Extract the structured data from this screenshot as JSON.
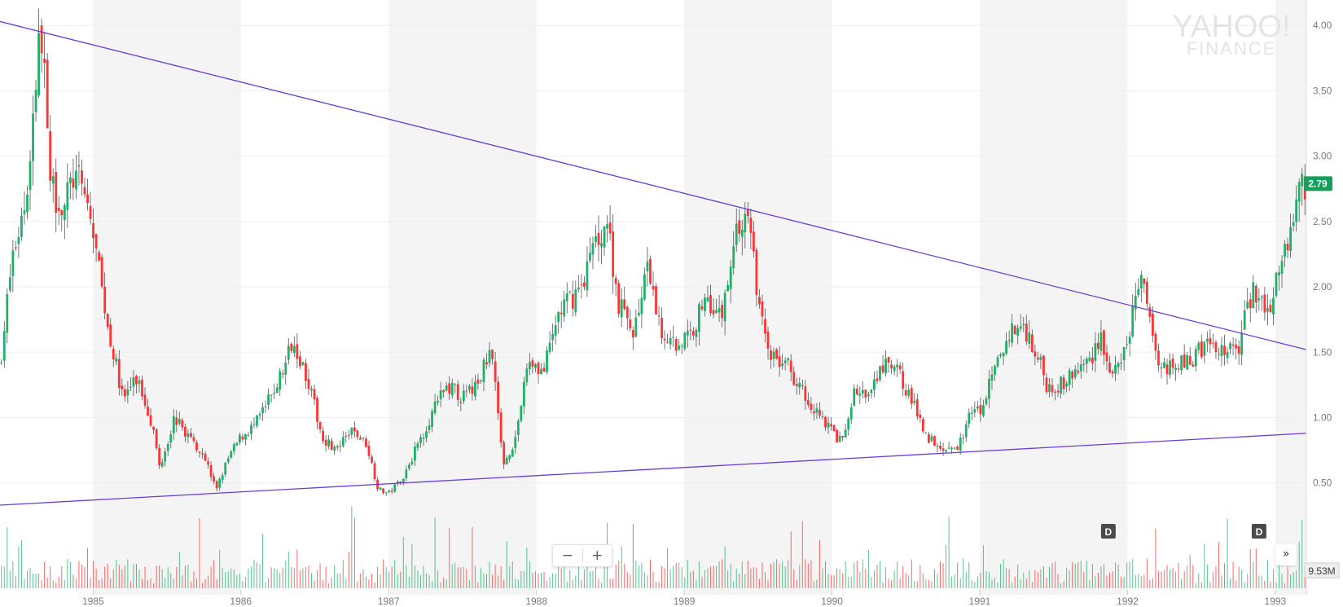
{
  "watermark": {
    "line1": "YAHOO!",
    "line2": "FINANCE"
  },
  "colors": {
    "up": "#1db16a",
    "down": "#ff3333",
    "trendline": "#6a3cd8",
    "badge": "#14a05a",
    "band": "#f4f4f4",
    "grid": "#eeeeee"
  },
  "controls": {
    "zoom_out_icon": "minus-icon",
    "zoom_in_icon": "plus-icon",
    "scroll_icon": "double-chevron-right-icon"
  },
  "chart_data": {
    "type": "candlestick",
    "x_labels": [
      "1985",
      "1986",
      "1987",
      "1988",
      "1989",
      "1990",
      "1991",
      "1992",
      "1993"
    ],
    "y_ticks": [
      "0.50",
      "1.00",
      "1.50",
      "2.00",
      "2.50",
      "3.00",
      "3.50",
      "4.00"
    ],
    "ylim": [
      0.33,
      4.07
    ],
    "xlim": [
      1984.37,
      1993.21
    ],
    "last_price": "2.79",
    "last_volume": "9.53M",
    "event_markers": [
      {
        "label": "D",
        "x": 1991.87
      },
      {
        "label": "D",
        "x": 1992.89
      }
    ],
    "price_path": [
      [
        1984.37,
        1.4
      ],
      [
        1984.45,
        2.2
      ],
      [
        1984.55,
        2.7
      ],
      [
        1984.62,
        3.7
      ],
      [
        1984.66,
        4.02
      ],
      [
        1984.7,
        2.8
      ],
      [
        1984.8,
        2.6
      ],
      [
        1984.87,
        2.85
      ],
      [
        1984.95,
        2.7
      ],
      [
        1985.0,
        2.4
      ],
      [
        1985.1,
        1.7
      ],
      [
        1985.2,
        1.15
      ],
      [
        1985.3,
        1.3
      ],
      [
        1985.4,
        0.95
      ],
      [
        1985.45,
        0.62
      ],
      [
        1985.55,
        1.0
      ],
      [
        1985.65,
        0.85
      ],
      [
        1985.75,
        0.72
      ],
      [
        1985.83,
        0.45
      ],
      [
        1985.92,
        0.7
      ],
      [
        1986.0,
        0.85
      ],
      [
        1986.1,
        0.95
      ],
      [
        1986.2,
        1.15
      ],
      [
        1986.3,
        1.4
      ],
      [
        1986.35,
        1.62
      ],
      [
        1986.45,
        1.3
      ],
      [
        1986.55,
        0.85
      ],
      [
        1986.65,
        0.75
      ],
      [
        1986.75,
        0.9
      ],
      [
        1986.85,
        0.8
      ],
      [
        1986.93,
        0.45
      ],
      [
        1987.0,
        0.42
      ],
      [
        1987.1,
        0.55
      ],
      [
        1987.2,
        0.8
      ],
      [
        1987.3,
        1.05
      ],
      [
        1987.4,
        1.25
      ],
      [
        1987.5,
        1.15
      ],
      [
        1987.6,
        1.25
      ],
      [
        1987.7,
        1.55
      ],
      [
        1987.77,
        0.65
      ],
      [
        1987.85,
        0.8
      ],
      [
        1987.95,
        1.45
      ],
      [
        1988.05,
        1.35
      ],
      [
        1988.15,
        1.8
      ],
      [
        1988.3,
        2.0
      ],
      [
        1988.4,
        2.35
      ],
      [
        1988.48,
        2.5
      ],
      [
        1988.55,
        1.9
      ],
      [
        1988.65,
        1.65
      ],
      [
        1988.75,
        2.1
      ],
      [
        1988.85,
        1.65
      ],
      [
        1988.95,
        1.55
      ],
      [
        1989.05,
        1.65
      ],
      [
        1989.15,
        1.95
      ],
      [
        1989.25,
        1.75
      ],
      [
        1989.35,
        2.45
      ],
      [
        1989.45,
        2.5
      ],
      [
        1989.5,
        1.85
      ],
      [
        1989.6,
        1.45
      ],
      [
        1989.7,
        1.4
      ],
      [
        1989.8,
        1.2
      ],
      [
        1989.9,
        1.05
      ],
      [
        1990.0,
        0.9
      ],
      [
        1990.07,
        0.8
      ],
      [
        1990.15,
        1.2
      ],
      [
        1990.25,
        1.15
      ],
      [
        1990.35,
        1.4
      ],
      [
        1990.45,
        1.35
      ],
      [
        1990.55,
        1.1
      ],
      [
        1990.65,
        0.85
      ],
      [
        1990.75,
        0.78
      ],
      [
        1990.85,
        0.75
      ],
      [
        1990.92,
        1.0
      ],
      [
        1991.0,
        1.05
      ],
      [
        1991.1,
        1.35
      ],
      [
        1991.2,
        1.65
      ],
      [
        1991.3,
        1.7
      ],
      [
        1991.4,
        1.45
      ],
      [
        1991.45,
        1.25
      ],
      [
        1991.55,
        1.25
      ],
      [
        1991.65,
        1.35
      ],
      [
        1991.75,
        1.45
      ],
      [
        1991.82,
        1.65
      ],
      [
        1991.87,
        1.35
      ],
      [
        1991.95,
        1.35
      ],
      [
        1992.03,
        1.75
      ],
      [
        1992.08,
        2.1
      ],
      [
        1992.15,
        1.75
      ],
      [
        1992.22,
        1.4
      ],
      [
        1992.35,
        1.4
      ],
      [
        1992.45,
        1.45
      ],
      [
        1992.55,
        1.6
      ],
      [
        1992.65,
        1.5
      ],
      [
        1992.75,
        1.55
      ],
      [
        1992.85,
        2.0
      ],
      [
        1992.95,
        1.85
      ],
      [
        1993.0,
        2.0
      ],
      [
        1993.05,
        2.3
      ],
      [
        1993.12,
        2.45
      ],
      [
        1993.18,
        2.79
      ]
    ],
    "trendlines": [
      {
        "name": "resistance",
        "x": [
          1984.37,
          1993.21
        ],
        "y": [
          4.03,
          1.52
        ]
      },
      {
        "name": "support",
        "x": [
          1984.37,
          1993.21
        ],
        "y": [
          0.33,
          0.88
        ]
      }
    ]
  }
}
